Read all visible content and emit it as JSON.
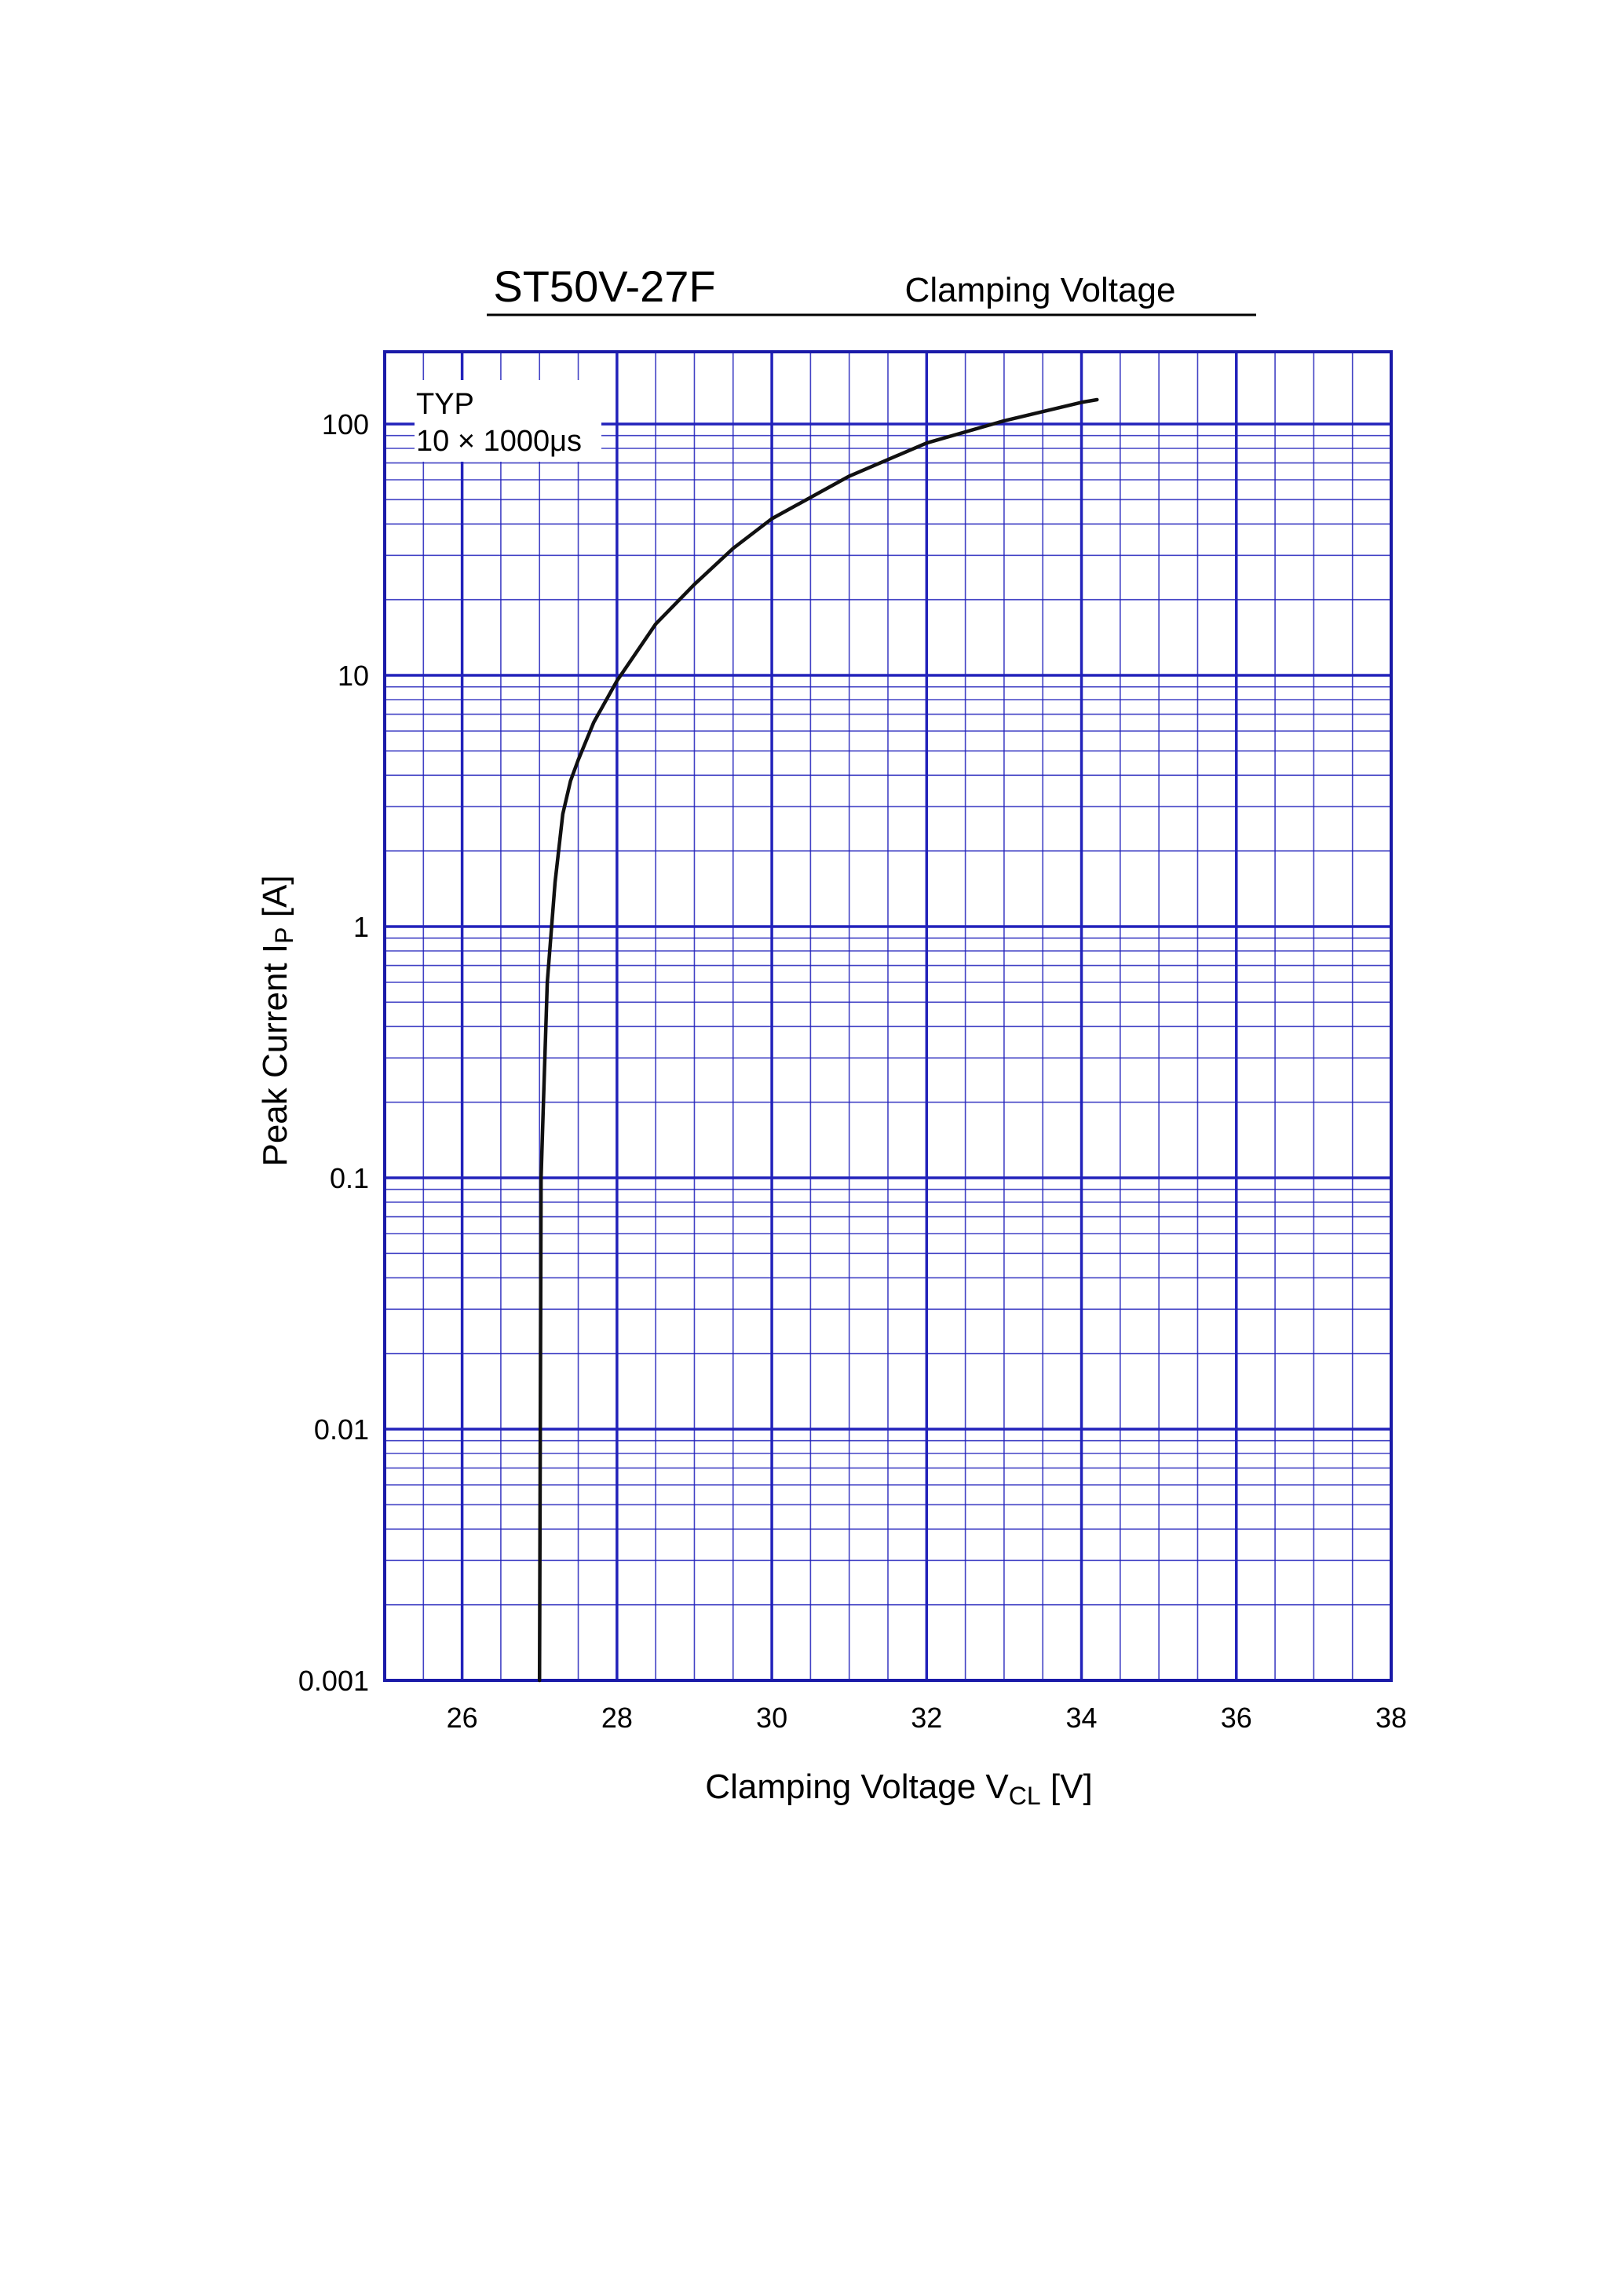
{
  "chart_data": {
    "type": "line",
    "title": "ST50V-27F",
    "subtitle": "Clamping Voltage",
    "xlabel": {
      "main": "Clamping Voltage  V",
      "sub": "CL",
      "unit": "  [V]"
    },
    "ylabel": {
      "main": "Peak Current  I",
      "sub": "P",
      "unit": "  [A]"
    },
    "annotations": [
      "TYP",
      "10 × 1000μs"
    ],
    "xlim": [
      25,
      38
    ],
    "ylim": [
      0.001,
      200
    ],
    "yscale": "log",
    "grid": true,
    "x_ticks": [
      26,
      28,
      30,
      32,
      34,
      36,
      38
    ],
    "x_tick_labels": [
      "26",
      "28",
      "30",
      "32",
      "34",
      "36",
      "38"
    ],
    "y_ticks": [
      0.001,
      0.01,
      0.1,
      1,
      10,
      100
    ],
    "y_tick_labels": [
      "0.001",
      "0.01",
      "0.1",
      "1",
      "10",
      "100"
    ],
    "series": [
      {
        "x": [
          27.0,
          27.01,
          27.02,
          27.05,
          27.1,
          27.2,
          27.3,
          27.4,
          27.5,
          27.7,
          28.0,
          28.5,
          29.0,
          29.5,
          30.0,
          31.0,
          32.0,
          33.0,
          34.0,
          34.2
        ],
        "y": [
          0.001,
          0.01,
          0.1,
          0.2,
          0.6,
          1.5,
          2.8,
          3.8,
          4.6,
          6.5,
          9.5,
          16,
          23,
          32,
          42,
          62,
          84,
          103,
          122,
          125
        ]
      }
    ],
    "colors": {
      "grid": "#2222bb",
      "frame": "#1a1aa8",
      "line": "#111111"
    }
  }
}
